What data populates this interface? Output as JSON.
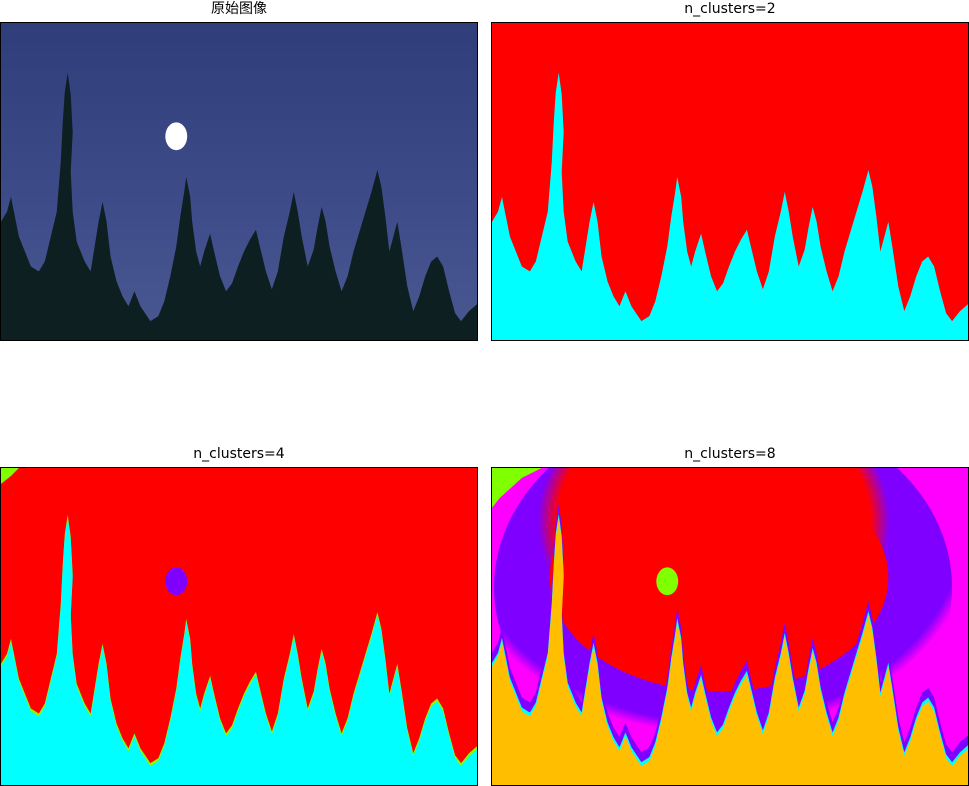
{
  "panels": [
    {
      "title": "原始图像"
    },
    {
      "title": "n_clusters=2"
    },
    {
      "title": "n_clusters=4"
    },
    {
      "title": "n_clusters=8"
    }
  ],
  "colors": {
    "sky_original": "#3b4a86",
    "trees_original": "#0e1f22",
    "moon": "#ffffff",
    "red": "#ff0000",
    "cyan": "#00ffff",
    "purple": "#7f00ff",
    "green": "#80ff00",
    "magenta": "#ff00ff",
    "orange": "#ffbf00"
  }
}
